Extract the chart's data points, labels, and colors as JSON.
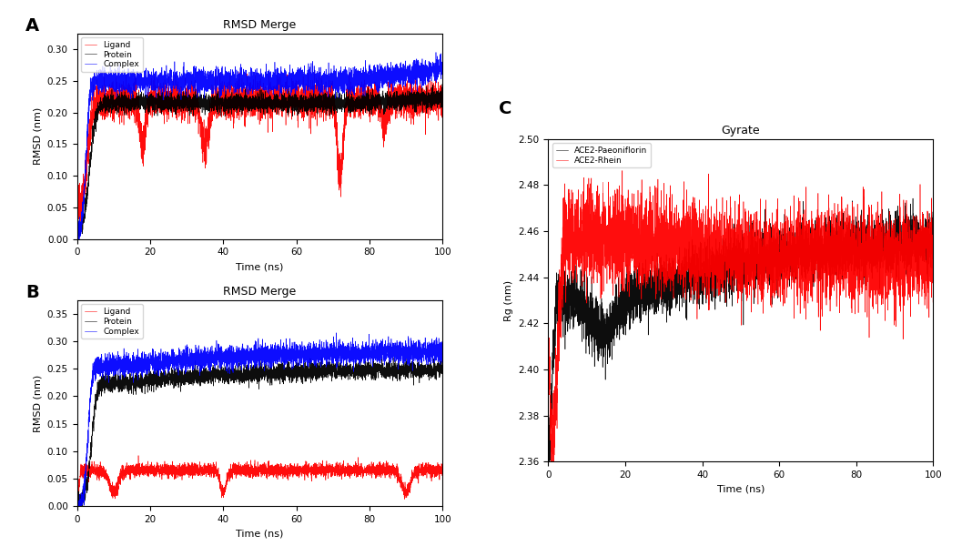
{
  "panel_A": {
    "title": "RMSD Merge",
    "xlabel": "Time (ns)",
    "ylabel": "RMSD (nm)",
    "xlim": [
      0,
      100
    ],
    "ylim": [
      0.0,
      0.325
    ],
    "yticks": [
      0.0,
      0.05,
      0.1,
      0.15,
      0.2,
      0.25,
      0.3
    ],
    "xticks": [
      0,
      20,
      40,
      60,
      80,
      100
    ],
    "ligand_color": "red",
    "protein_color": "black",
    "complex_color": "blue",
    "legend_labels": [
      "Ligand",
      "Protein",
      "Complex"
    ],
    "label": "A"
  },
  "panel_B": {
    "title": "RMSD Merge",
    "xlabel": "Time (ns)",
    "ylabel": "RMSD (nm)",
    "xlim": [
      0,
      100
    ],
    "ylim": [
      0.0,
      0.375
    ],
    "yticks": [
      0.0,
      0.05,
      0.1,
      0.15,
      0.2,
      0.25,
      0.3,
      0.35
    ],
    "xticks": [
      0,
      20,
      40,
      60,
      80,
      100
    ],
    "ligand_color": "red",
    "protein_color": "black",
    "complex_color": "blue",
    "legend_labels": [
      "Ligand",
      "Protein",
      "Complex"
    ],
    "label": "B"
  },
  "panel_C": {
    "title": "Gyrate",
    "xlabel": "Time (ns)",
    "ylabel": "Rg (nm)",
    "ylim": [
      2.36,
      2.5
    ],
    "xlim": [
      0,
      100
    ],
    "yticks": [
      2.36,
      2.38,
      2.4,
      2.42,
      2.44,
      2.46,
      2.48,
      2.5
    ],
    "xticks": [
      0,
      20,
      40,
      60,
      80,
      100
    ],
    "paeoniflorin_color": "black",
    "rhein_color": "red",
    "legend_labels": [
      "ACE2-Paeoniflorin",
      "ACE2-Rhein"
    ],
    "label": "C"
  },
  "seed": 42,
  "n_points": 5001
}
